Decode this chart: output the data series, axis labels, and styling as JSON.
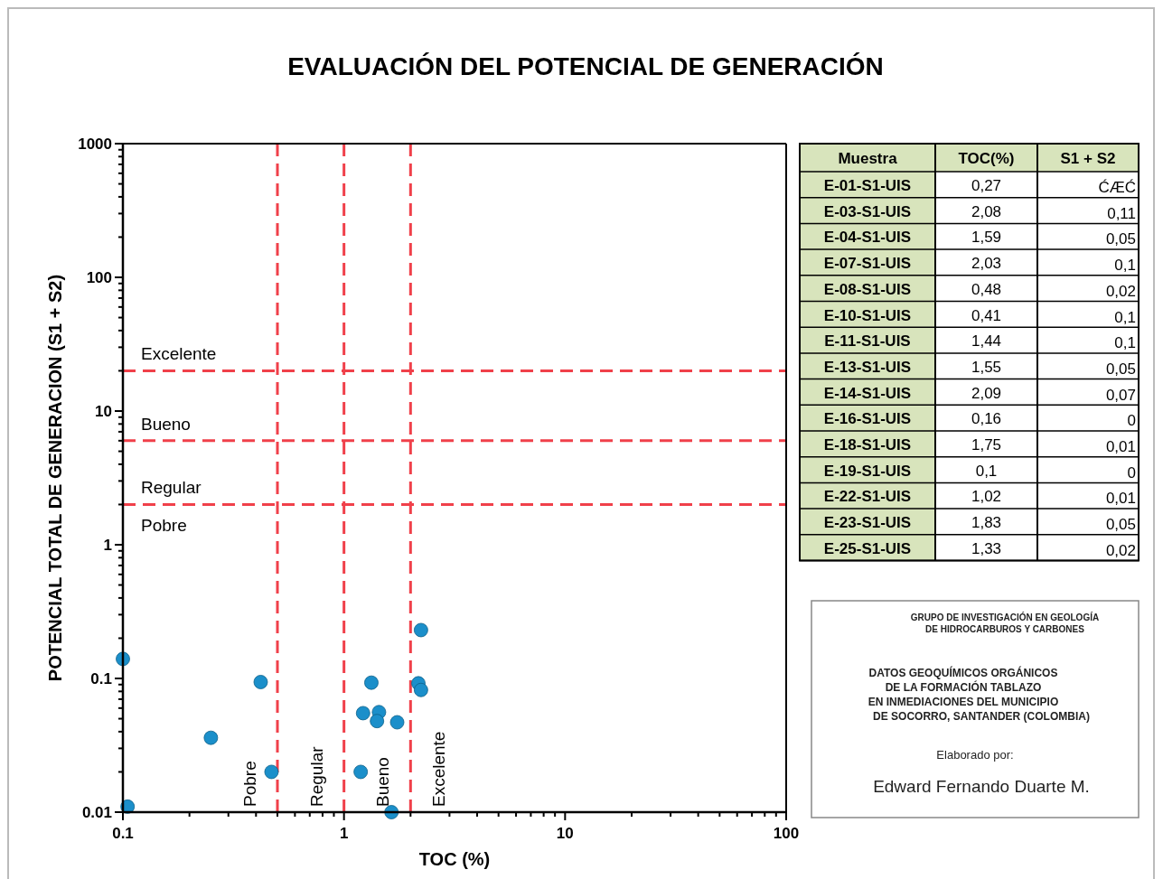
{
  "chart_data": [
    {
      "type": "scatter",
      "title": "EVALUACIÓN DEL POTENCIAL DE GENERACIÓN",
      "xlabel": "TOC (%)",
      "ylabel": "POTENCIAL TOTAL DE GENERACION (S1 + S2)",
      "log": "xy",
      "marker": "circle",
      "grid": false,
      "xlim": [
        0.1,
        100
      ],
      "xticks": [
        {
          "value": 0.1,
          "label": "0.1"
        },
        {
          "value": 0.2,
          "label": null
        },
        {
          "value": 0.3,
          "label": null
        },
        {
          "value": 0.4,
          "label": null
        },
        {
          "value": 0.5,
          "label": null
        },
        {
          "value": 0.6,
          "label": null
        },
        {
          "value": 0.7,
          "label": null
        },
        {
          "value": 0.8,
          "label": null
        },
        {
          "value": 0.9,
          "label": null
        },
        1,
        {
          "value": 2,
          "label": null
        },
        {
          "value": 3,
          "label": null
        },
        {
          "value": 4,
          "label": null
        },
        {
          "value": 5,
          "label": null
        },
        {
          "value": 6,
          "label": null
        },
        {
          "value": 7,
          "label": null
        },
        {
          "value": 8,
          "label": null
        },
        {
          "value": 9,
          "label": null
        },
        10,
        {
          "value": 20,
          "label": null
        },
        {
          "value": 30,
          "label": null
        },
        {
          "value": 40,
          "label": null
        },
        {
          "value": 50,
          "label": null
        },
        {
          "value": 60,
          "label": null
        },
        {
          "value": 70,
          "label": null
        },
        {
          "value": 80,
          "label": null
        },
        {
          "value": 90,
          "label": null
        },
        100
      ],
      "ylim": [
        0.01,
        1000
      ],
      "yticks": [
        0.01,
        {
          "value": 0.02,
          "label": null
        },
        {
          "value": 0.03,
          "label": null
        },
        {
          "value": 0.04,
          "label": null
        },
        {
          "value": 0.05,
          "label": null
        },
        {
          "value": 0.06,
          "label": null
        },
        {
          "value": 0.07,
          "label": null
        },
        {
          "value": 0.08,
          "label": null
        },
        {
          "value": 0.09,
          "label": null
        },
        0.1,
        {
          "value": 0.2,
          "label": null
        },
        {
          "value": 0.3,
          "label": null
        },
        {
          "value": 0.4,
          "label": null
        },
        {
          "value": 0.5,
          "label": null
        },
        {
          "value": 0.6,
          "label": null
        },
        {
          "value": 0.7,
          "label": null
        },
        {
          "value": 0.8,
          "label": null
        },
        {
          "value": 0.9,
          "label": null
        },
        1,
        {
          "value": 2,
          "label": null
        },
        {
          "value": 3,
          "label": null
        },
        {
          "value": 4,
          "label": null
        },
        {
          "value": 5,
          "label": null
        },
        {
          "value": 6,
          "label": null
        },
        {
          "value": 7,
          "label": null
        },
        {
          "value": 8,
          "label": null
        },
        {
          "value": 9,
          "label": null
        },
        10,
        {
          "value": 20,
          "label": null
        },
        {
          "value": 30,
          "label": null
        },
        {
          "value": 40,
          "label": null
        },
        {
          "value": 50,
          "label": null
        },
        {
          "value": 60,
          "label": null
        },
        {
          "value": 70,
          "label": null
        },
        {
          "value": 80,
          "label": null
        },
        {
          "value": 90,
          "label": null
        },
        100,
        {
          "value": 200,
          "label": null
        },
        {
          "value": 300,
          "label": null
        },
        {
          "value": 400,
          "label": null
        },
        {
          "value": 500,
          "label": null
        },
        {
          "value": 600,
          "label": null
        },
        {
          "value": 700,
          "label": null
        },
        {
          "value": 800,
          "label": null
        },
        {
          "value": 900,
          "label": null
        },
        1000
      ],
      "series": [
        {
          "color": "#1b8fca",
          "x": [
            0.1,
            0.105,
            0.25,
            0.42,
            0.47,
            1.19,
            1.22,
            1.33,
            1.44,
            1.41,
            1.74,
            1.64,
            2.23,
            2.17,
            2.23
          ],
          "values": [
            0.14,
            0.011,
            0.036,
            0.094,
            0.02,
            0.02,
            0.055,
            0.093,
            0.056,
            0.048,
            0.047,
            0.01,
            0.23,
            0.092,
            0.082
          ]
        }
      ],
      "ref_lines": [
        {
          "axis": "y",
          "value": 20,
          "label": "Excelente",
          "color": "#f0404a",
          "line_style": "dashed"
        },
        {
          "axis": "y",
          "value": 6,
          "label": "Bueno",
          "color": "#f0404a",
          "line_style": "dashed"
        },
        {
          "axis": "y",
          "value": 2,
          "label": "Regular",
          "color": "#f0404a",
          "line_style": "dashed"
        },
        {
          "axis": "x",
          "value": 0.5,
          "label": "Pobre",
          "color": "#f0404a",
          "line_style": "dashed"
        },
        {
          "axis": "x",
          "value": 1,
          "label": "Regular",
          "color": "#f0404a",
          "line_style": "dashed"
        },
        {
          "axis": "x",
          "value": 2,
          "label": "Bueno",
          "color": "#f0404a",
          "line_style": "dashed"
        }
      ],
      "annotations": [
        "Pobre",
        "Excelente"
      ]
    },
    {
      "type": "other",
      "xlabel": "Muestra",
      "categories": [
        "E-01-S1-UIS",
        "E-03-S1-UIS",
        "E-04-S1-UIS",
        "E-07-S1-UIS",
        "E-08-S1-UIS",
        "E-10-S1-UIS",
        "E-11-S1-UIS",
        "E-13-S1-UIS",
        "E-14-S1-UIS",
        "E-16-S1-UIS",
        "E-18-S1-UIS",
        "E-19-S1-UIS",
        "E-22-S1-UIS",
        "E-23-S1-UIS",
        "E-25-S1-UIS"
      ],
      "series": [
        {
          "name": "TOC(%)",
          "values": [
            0.27,
            2.08,
            1.59,
            2.03,
            0.48,
            0.41,
            1.44,
            1.55,
            2.09,
            0.16,
            1.75,
            0.1,
            1.02,
            1.83,
            1.33
          ],
          "value_labels": [
            "0,27",
            "2,08",
            "1,59",
            "2,03",
            "0,48",
            "0,41",
            "1,44",
            "1,55",
            "2,09",
            "0,16",
            "1,75",
            "0,1",
            "1,02",
            "1,83",
            "1,33"
          ]
        },
        {
          "name": "S1 + S2",
          "values": [
            null,
            0.11,
            0.05,
            0.1,
            0.02,
            0.1,
            0.1,
            0.05,
            0.07,
            0,
            0.01,
            0,
            0.01,
            0.05,
            0.02
          ],
          "value_labels": [
            "ĆÆĆ",
            "0,11",
            "0,05",
            "0,1",
            "0,02",
            "0,1",
            "0,1",
            "0,05",
            "0,07",
            "0",
            "0,01",
            "0",
            "0,01",
            "0,05",
            "0,02"
          ]
        }
      ]
    },
    {
      "type": "other",
      "annotations": [
        "GRUPO DE INVESTIGACIÓN EN GEOLOGÍA",
        "DE HIDROCARBUROS Y CARBONES",
        "DATOS GEOQUÍMICOS ORGÁNICOS",
        "DE LA FORMACIÓN TABLAZO",
        "EN INMEDIACIONES DEL  MUNICIPIO",
        "DE SOCORRO, SANTANDER (COLOMBIA)",
        "Elaborado por:",
        "Edward Fernando Duarte M."
      ]
    }
  ]
}
